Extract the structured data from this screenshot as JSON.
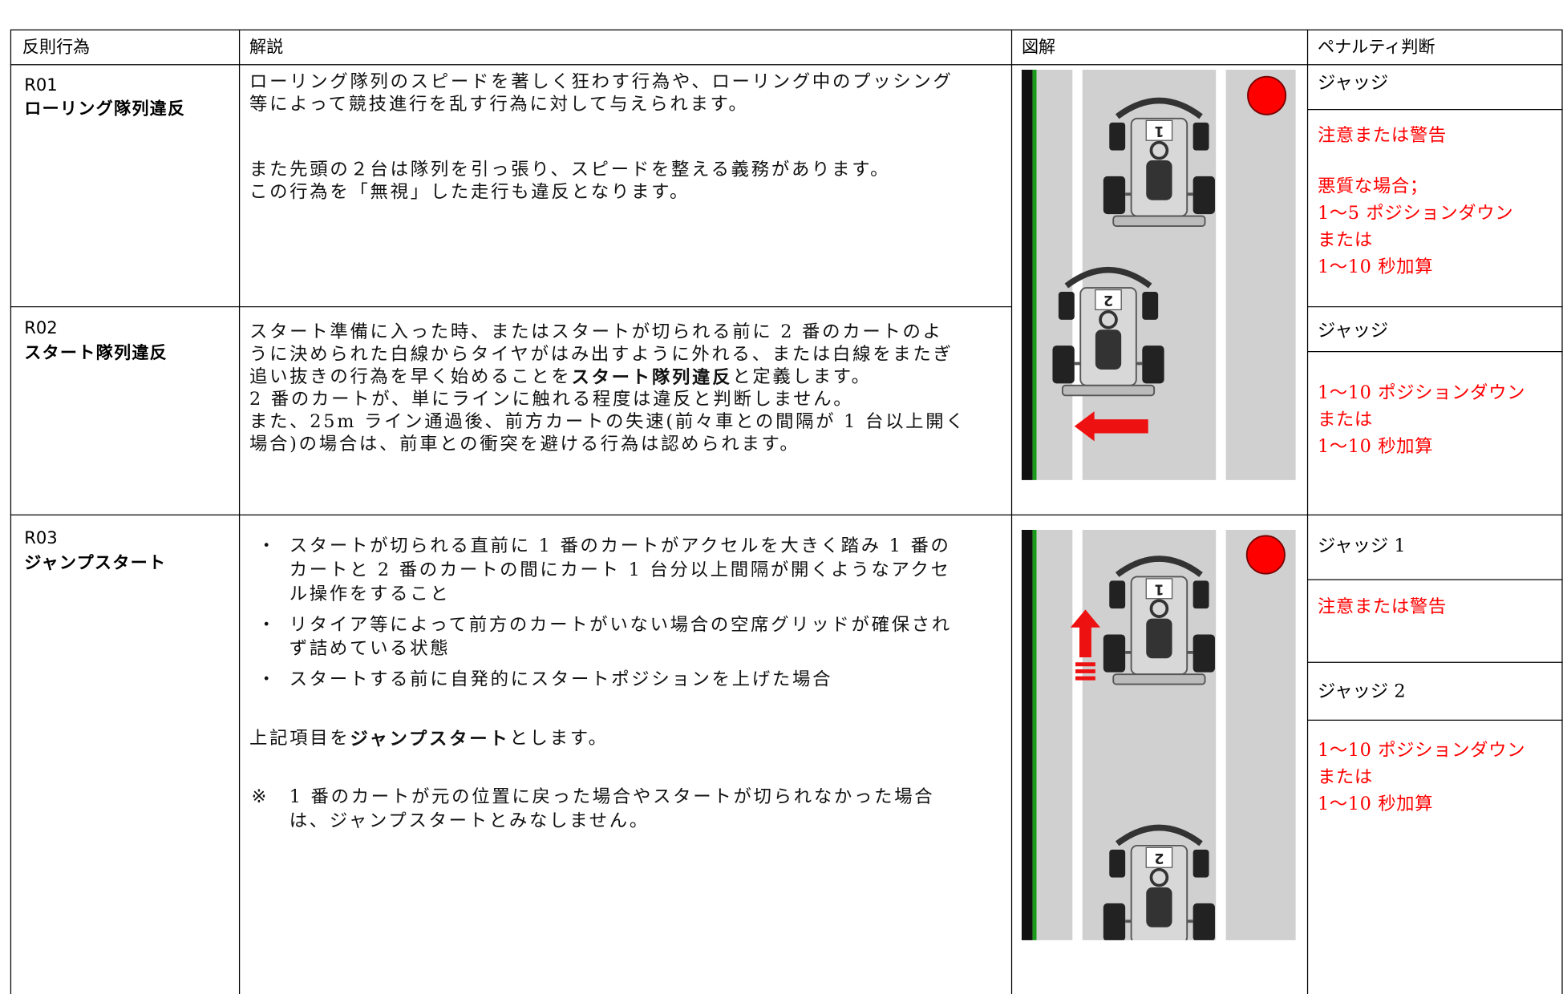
{
  "header": [
    "反則行為",
    "解説",
    "図解",
    "ペナルティ判断"
  ],
  "rows": [
    {
      "code": "R01",
      "name": "ローリング隊列違反",
      "description": [
        {
          "lines": [
            [
              "ローリング隊列のスピードを著しく狂わす行為や、ローリング中のプッシング"
            ],
            [
              "等によって競技進行を乱す行為に対して与えられます。"
            ]
          ]
        },
        {
          "lines": [
            [
              "また先頭の２台は隊列を引っ張り、スピードを整える義務があります。"
            ],
            [
              "この行為を「無視」した走行も違反となります。"
            ]
          ]
        }
      ],
      "penalties": [
        {
          "judge": "ジャッジ",
          "blocks": [
            [
              "注意または警告"
            ],
            [
              "悪質な場合；",
              "1〜5 ポジションダウン",
              "または",
              "1〜10 秒加算"
            ]
          ]
        }
      ]
    },
    {
      "code": "R02",
      "name": "スタート隊列違反",
      "description": [
        {
          "lines": [
            [
              "スタート準備に入った時、またはスタートが切られる前に 2 番のカートのよ"
            ],
            [
              "うに決められた白線からタイヤがはみ出すように外れる、または白線をまたぎ"
            ],
            [
              "追い抜きの行為を早く始めることを",
              {
                "text": "スタート隊列違反",
                "bold": true
              },
              "と定義します。"
            ],
            [
              "2 番のカートが、単にラインに触れる程度は違反と判断しません。"
            ],
            [
              "また、25m ライン通過後、前方カートの失速(前々車との間隔が 1 台以上開く"
            ],
            [
              "場合)の場合は、前車との衝突を避ける行為は認められます。"
            ]
          ]
        }
      ],
      "penalties": [
        {
          "judge": "ジャッジ",
          "blocks": [
            [
              "1〜10 ポジションダウン",
              "または",
              "1〜10 秒加算"
            ]
          ]
        }
      ]
    },
    {
      "code": "R03",
      "name": "ジャンプスタート",
      "description": [
        {
          "marker": "・",
          "lines": [
            [
              "スタートが切られる直前に 1 番のカートがアクセルを大きく踏み 1 番の"
            ],
            [
              "カートと 2 番のカートの間にカート 1 台分以上間隔が開くようなアクセ"
            ],
            [
              "ル操作をすること"
            ]
          ]
        },
        {
          "marker": "・",
          "lines": [
            [
              "リタイア等によって前方のカートがいない場合の空席グリッドが確保され"
            ],
            [
              "ず詰めている状態"
            ]
          ]
        },
        {
          "marker": "・",
          "lines": [
            [
              "スタートする前に自発的にスタートポジションを上げた場合"
            ]
          ]
        },
        {
          "lines": [
            [
              "上記項目を",
              {
                "text": "ジャンプスタート",
                "bold": true
              },
              "とします。"
            ]
          ]
        },
        {
          "marker": "※",
          "lines": [
            [
              "1 番のカートが元の位置に戻った場合やスタートが切られなかった場合"
            ],
            [
              "は、ジャンプスタートとみなしません。"
            ]
          ]
        }
      ],
      "penalties": [
        {
          "judge": "ジャッジ 1",
          "blocks": [
            [
              "注意または警告"
            ]
          ]
        },
        {
          "judge": "ジャッジ 2",
          "blocks": [
            [
              "1〜10 ポジションダウン",
              "または",
              "1〜10 秒加算"
            ]
          ]
        }
      ]
    }
  ],
  "diagrams": [
    {
      "kart_numbers": [
        "1",
        "2"
      ]
    },
    {
      "kart_numbers": [
        "1",
        "2"
      ]
    }
  ]
}
